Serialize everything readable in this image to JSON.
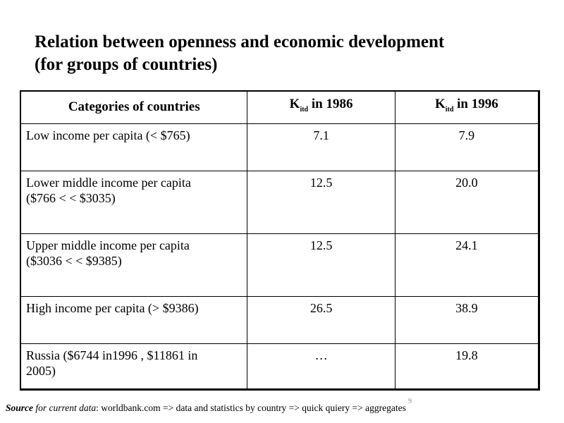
{
  "title_line1": "Relation between openness and economic development",
  "title_line2": "(for groups of countries)",
  "table": {
    "headers": [
      {
        "text": "Categories of countries"
      },
      {
        "k": "K",
        "sub": "itd",
        "text": " in 1986"
      },
      {
        "k": "K",
        "sub": "itd",
        "text": " in 1996"
      }
    ],
    "rows": [
      {
        "category": [
          "Low income per capita (< $765)"
        ],
        "v1986": "7.1",
        "v1996": "7.9"
      },
      {
        "category": [
          "Lower middle income per capita",
          "($766 <  < $3035)"
        ],
        "v1986": "12.5",
        "v1996": "20.0"
      },
      {
        "category": [
          "Upper middle income per capita",
          "($3036 <  < $9385)"
        ],
        "v1986": "12.5",
        "v1996": "24.1"
      },
      {
        "category": [
          "High income per capita (> $9386)"
        ],
        "v1986": "26.5",
        "v1996": "38.9"
      },
      {
        "category": [
          "Russia ($6744 in1996 , $11861 in",
          "2005)"
        ],
        "v1986": "…",
        "v1996": "19.8"
      }
    ]
  },
  "source": {
    "label": "Source",
    "italic": " for current data",
    "text": ": worldbank.com => data and statistics by country => quick quiery => aggregates"
  },
  "page_number": "9"
}
